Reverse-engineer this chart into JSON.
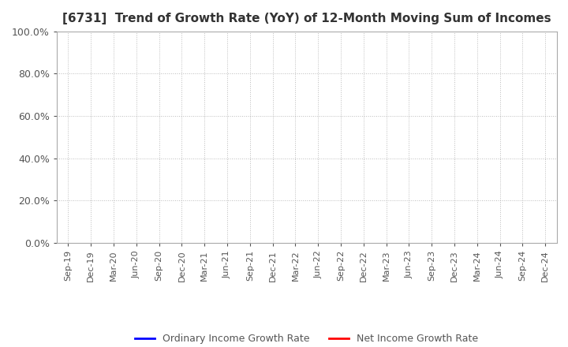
{
  "title": "[6731]  Trend of Growth Rate (YoY) of 12-Month Moving Sum of Incomes",
  "title_fontsize": 11,
  "title_color": "#333333",
  "background_color": "#ffffff",
  "plot_bg_color": "#ffffff",
  "ylim": [
    0.0,
    1.0
  ],
  "yticks": [
    0.0,
    0.2,
    0.4,
    0.6,
    0.8,
    1.0
  ],
  "ytick_labels": [
    "0.0%",
    "20.0%",
    "40.0%",
    "60.0%",
    "80.0%",
    "100.0%"
  ],
  "xtick_labels": [
    "Sep-19",
    "Dec-19",
    "Mar-20",
    "Jun-20",
    "Sep-20",
    "Dec-20",
    "Mar-21",
    "Jun-21",
    "Sep-21",
    "Dec-21",
    "Mar-22",
    "Jun-22",
    "Sep-22",
    "Dec-22",
    "Mar-23",
    "Jun-23",
    "Sep-23",
    "Dec-23",
    "Mar-24",
    "Jun-24",
    "Sep-24",
    "Dec-24"
  ],
  "grid_color": "#bbbbbb",
  "legend_entries": [
    {
      "label": "Ordinary Income Growth Rate",
      "color": "#0000ff"
    },
    {
      "label": "Net Income Growth Rate",
      "color": "#ff0000"
    }
  ],
  "ordinary_income_data": [],
  "net_income_data": []
}
